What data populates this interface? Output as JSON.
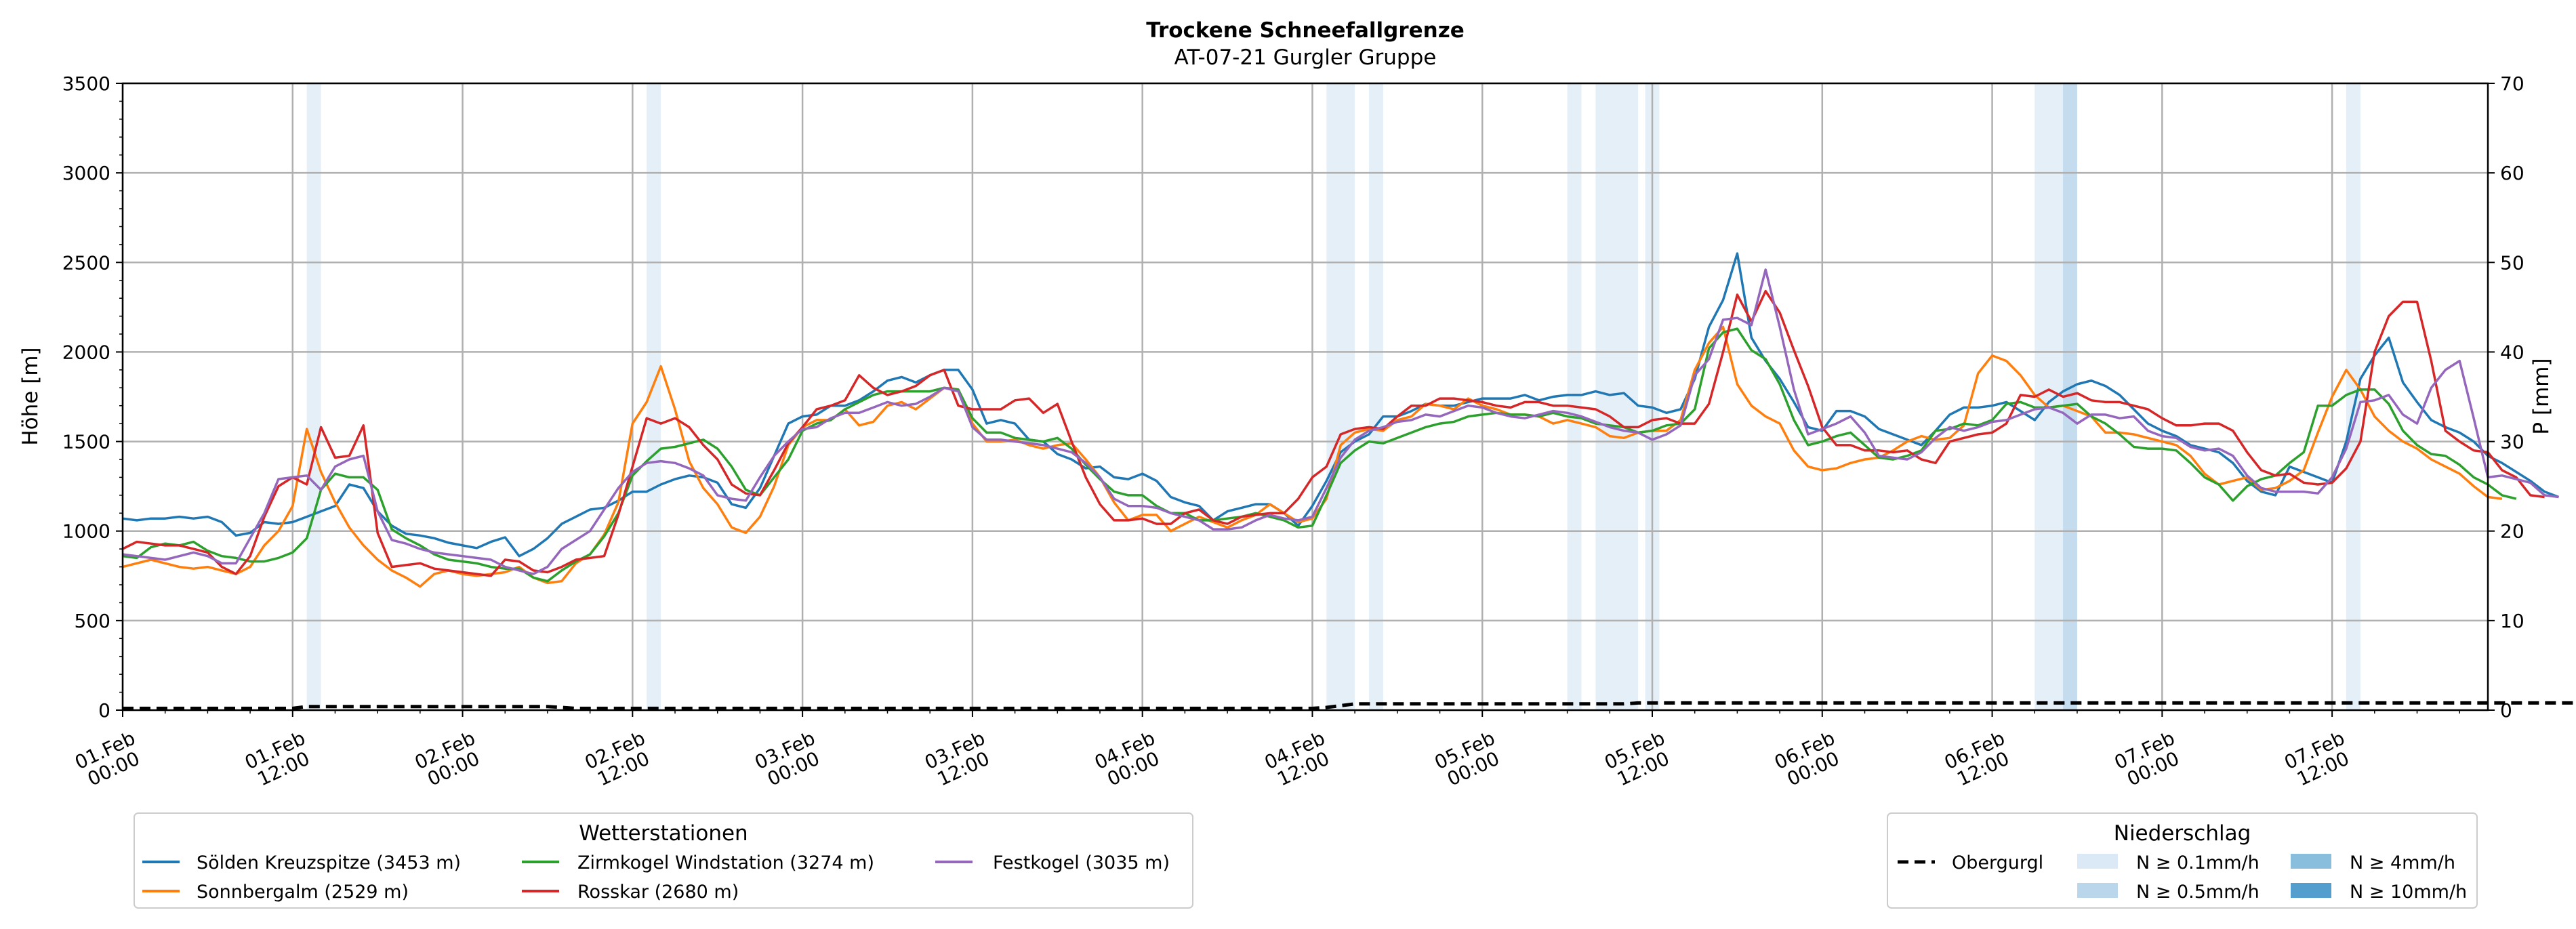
{
  "chart_data": {
    "type": "line",
    "title": "Trockene Schneefallgrenze",
    "subtitle": "AT-07-21 Gurgler Gruppe",
    "ylabel": "Höhe [m]",
    "y2label": "P [mm]",
    "ylim": [
      0,
      3500
    ],
    "y2lim": [
      0,
      70
    ],
    "yticks": [
      "0",
      "500",
      "1000",
      "1500",
      "2000",
      "2500",
      "3000",
      "3500"
    ],
    "y2ticks": [
      "0",
      "10",
      "20",
      "30",
      "40",
      "50",
      "60",
      "70"
    ],
    "xlim_hours": [
      0,
      167
    ],
    "step_hours": 1,
    "xticks": [
      {
        "h": 0,
        "l1": "01.Feb",
        "l2": "00:00"
      },
      {
        "h": 12,
        "l1": "01.Feb",
        "l2": "12:00"
      },
      {
        "h": 24,
        "l1": "02.Feb",
        "l2": "00:00"
      },
      {
        "h": 36,
        "l1": "02.Feb",
        "l2": "12:00"
      },
      {
        "h": 48,
        "l1": "03.Feb",
        "l2": "00:00"
      },
      {
        "h": 60,
        "l1": "03.Feb",
        "l2": "12:00"
      },
      {
        "h": 72,
        "l1": "04.Feb",
        "l2": "00:00"
      },
      {
        "h": 84,
        "l1": "04.Feb",
        "l2": "12:00"
      },
      {
        "h": 96,
        "l1": "05.Feb",
        "l2": "00:00"
      },
      {
        "h": 108,
        "l1": "05.Feb",
        "l2": "12:00"
      },
      {
        "h": 120,
        "l1": "06.Feb",
        "l2": "00:00"
      },
      {
        "h": 132,
        "l1": "06.Feb",
        "l2": "12:00"
      },
      {
        "h": 144,
        "l1": "07.Feb",
        "l2": "00:00"
      },
      {
        "h": 156,
        "l1": "07.Feb",
        "l2": "12:00"
      }
    ],
    "precip_bands": [
      {
        "start": 13,
        "end": 14,
        "level": 0.1
      },
      {
        "start": 37,
        "end": 38,
        "level": 0.1
      },
      {
        "start": 85,
        "end": 87,
        "level": 0.1
      },
      {
        "start": 88,
        "end": 89,
        "level": 0.1
      },
      {
        "start": 102,
        "end": 103,
        "level": 0.1
      },
      {
        "start": 104,
        "end": 107,
        "level": 0.1
      },
      {
        "start": 107.5,
        "end": 108.5,
        "level": 0.1
      },
      {
        "start": 135,
        "end": 138,
        "level": 0.1
      },
      {
        "start": 137,
        "end": 138,
        "level": 0.5
      },
      {
        "start": 157,
        "end": 158,
        "level": 0.1
      }
    ],
    "obergurgl_precip_mm": [
      0.2,
      0.2,
      0.2,
      0.2,
      0.2,
      0.2,
      0.2,
      0.2,
      0.2,
      0.2,
      0.2,
      0.2,
      0.2,
      0.4,
      0.4,
      0.4,
      0.4,
      0.4,
      0.4,
      0.4,
      0.4,
      0.4,
      0.4,
      0.4,
      0.4,
      0.4,
      0.4,
      0.4,
      0.4,
      0.4,
      0.4,
      0.3,
      0.2,
      0.2,
      0.2,
      0.2,
      0.2,
      0.2,
      0.2,
      0.2,
      0.2,
      0.2,
      0.2,
      0.2,
      0.2,
      0.2,
      0.2,
      0.2,
      0.2,
      0.2,
      0.2,
      0.2,
      0.2,
      0.2,
      0.2,
      0.2,
      0.2,
      0.2,
      0.2,
      0.2,
      0.2,
      0.2,
      0.2,
      0.2,
      0.2,
      0.2,
      0.2,
      0.2,
      0.2,
      0.2,
      0.2,
      0.2,
      0.2,
      0.2,
      0.2,
      0.2,
      0.2,
      0.2,
      0.2,
      0.2,
      0.2,
      0.2,
      0.2,
      0.2,
      0.2,
      0.3,
      0.5,
      0.7,
      0.7,
      0.7,
      0.7,
      0.7,
      0.7,
      0.7,
      0.7,
      0.7,
      0.7,
      0.7,
      0.7,
      0.7,
      0.7,
      0.7,
      0.7,
      0.7,
      0.7,
      0.7,
      0.7,
      0.8,
      0.8,
      0.8,
      0.8,
      0.8,
      0.8,
      0.8,
      0.8,
      0.8,
      0.8,
      0.8,
      0.8,
      0.8,
      0.8,
      0.8,
      0.8,
      0.8,
      0.8,
      0.8,
      0.8,
      0.8,
      0.8,
      0.8,
      0.8,
      0.8,
      0.8,
      0.8,
      0.8,
      0.8,
      0.8,
      0.8,
      0.8,
      0.8,
      0.8,
      0.8,
      0.8,
      0.8,
      0.8,
      0.8,
      0.8,
      0.8,
      0.8,
      0.8,
      0.8,
      0.8,
      0.8,
      0.8,
      0.8,
      0.8,
      0.8,
      0.8,
      0.8,
      0.8,
      0.8,
      0.8,
      0.8,
      0.8,
      0.8,
      0.8,
      0.8,
      0.8,
      0.8,
      0.8,
      0.8,
      0.8,
      0.8,
      0.8
    ],
    "series": [
      {
        "name": "Sölden Kreuzspitze (3453 m)",
        "color": "#1f77b4",
        "values": [
          1070,
          1060,
          1070,
          1070,
          1080,
          1070,
          1080,
          1050,
          975,
          990,
          1050,
          1040,
          1050,
          1080,
          1110,
          1140,
          1260,
          1240,
          1110,
          1030,
          985,
          975,
          960,
          935,
          920,
          905,
          940,
          965,
          860,
          900,
          960,
          1040,
          1080,
          1120,
          1130,
          1170,
          1220,
          1220,
          1260,
          1290,
          1310,
          1300,
          1270,
          1150,
          1130,
          1240,
          1420,
          1600,
          1640,
          1650,
          1700,
          1700,
          1730,
          1780,
          1840,
          1860,
          1830,
          1870,
          1900,
          1900,
          1790,
          1600,
          1620,
          1600,
          1510,
          1500,
          1430,
          1400,
          1350,
          1360,
          1300,
          1290,
          1320,
          1280,
          1190,
          1160,
          1140,
          1060,
          1110,
          1130,
          1150,
          1150,
          1100,
          1030,
          1140,
          1280,
          1440,
          1500,
          1540,
          1640,
          1640,
          1670,
          1710,
          1700,
          1700,
          1720,
          1740,
          1740,
          1740,
          1760,
          1730,
          1750,
          1760,
          1760,
          1780,
          1760,
          1770,
          1700,
          1690,
          1660,
          1680,
          1850,
          2140,
          2290,
          2550,
          2080,
          1950,
          1850,
          1720,
          1580,
          1560,
          1670,
          1670,
          1640,
          1570,
          1540,
          1510,
          1480,
          1560,
          1650,
          1690,
          1690,
          1700,
          1720,
          1670,
          1620,
          1720,
          1780,
          1820,
          1840,
          1810,
          1760,
          1680,
          1600,
          1560,
          1530,
          1480,
          1460,
          1440,
          1380,
          1280,
          1220,
          1200,
          1360,
          1330,
          1300,
          1270,
          1500,
          1850,
          1980,
          2080,
          1830,
          1720,
          1620,
          1580,
          1550,
          1500,
          1420,
          1380,
          1330,
          1280,
          1220,
          1190
        ]
      },
      {
        "name": "Sonnbergalm (2529 m)",
        "color": "#ff7f0e",
        "values": [
          800,
          820,
          840,
          820,
          800,
          790,
          800,
          780,
          760,
          800,
          920,
          1000,
          1140,
          1570,
          1330,
          1160,
          1020,
          920,
          840,
          780,
          740,
          690,
          760,
          780,
          760,
          750,
          760,
          770,
          800,
          740,
          710,
          720,
          820,
          870,
          980,
          1160,
          1600,
          1720,
          1920,
          1680,
          1390,
          1240,
          1150,
          1020,
          990,
          1080,
          1250,
          1480,
          1580,
          1620,
          1620,
          1680,
          1590,
          1610,
          1700,
          1720,
          1680,
          1740,
          1800,
          1790,
          1600,
          1500,
          1500,
          1510,
          1480,
          1460,
          1480,
          1490,
          1400,
          1300,
          1160,
          1060,
          1090,
          1090,
          1000,
          1040,
          1080,
          1050,
          1020,
          1060,
          1090,
          1150,
          1100,
          1050,
          1070,
          1180,
          1480,
          1550,
          1570,
          1560,
          1620,
          1640,
          1710,
          1700,
          1680,
          1740,
          1700,
          1680,
          1650,
          1650,
          1640,
          1600,
          1620,
          1600,
          1580,
          1530,
          1520,
          1550,
          1560,
          1560,
          1620,
          1900,
          2050,
          2140,
          1820,
          1700,
          1640,
          1600,
          1450,
          1360,
          1340,
          1350,
          1380,
          1400,
          1410,
          1450,
          1500,
          1530,
          1510,
          1520,
          1590,
          1880,
          1980,
          1950,
          1870,
          1760,
          1690,
          1700,
          1670,
          1640,
          1550,
          1550,
          1540,
          1520,
          1500,
          1480,
          1420,
          1320,
          1260,
          1280,
          1300,
          1230,
          1240,
          1280,
          1340,
          1550,
          1750,
          1900,
          1790,
          1640,
          1560,
          1500,
          1460,
          1400,
          1360,
          1320,
          1250,
          1190,
          1180
        ]
      },
      {
        "name": "Zirmkogel Windstation (3274 m)",
        "color": "#2ca02c",
        "values": [
          860,
          850,
          910,
          930,
          920,
          940,
          890,
          860,
          850,
          830,
          830,
          850,
          880,
          960,
          1230,
          1320,
          1300,
          1300,
          1230,
          1010,
          960,
          920,
          870,
          840,
          830,
          820,
          800,
          790,
          790,
          740,
          720,
          780,
          830,
          870,
          970,
          1100,
          1310,
          1390,
          1460,
          1470,
          1490,
          1510,
          1460,
          1360,
          1230,
          1200,
          1300,
          1400,
          1560,
          1600,
          1620,
          1680,
          1720,
          1760,
          1780,
          1780,
          1780,
          1780,
          1800,
          1790,
          1630,
          1550,
          1550,
          1520,
          1510,
          1500,
          1520,
          1460,
          1370,
          1290,
          1220,
          1200,
          1200,
          1140,
          1100,
          1100,
          1060,
          1060,
          1070,
          1080,
          1100,
          1080,
          1060,
          1020,
          1030,
          1200,
          1380,
          1450,
          1500,
          1490,
          1520,
          1550,
          1580,
          1600,
          1610,
          1640,
          1650,
          1660,
          1650,
          1650,
          1640,
          1660,
          1640,
          1630,
          1600,
          1590,
          1580,
          1550,
          1560,
          1590,
          1600,
          1680,
          2020,
          2110,
          2130,
          2010,
          1960,
          1820,
          1620,
          1480,
          1500,
          1530,
          1550,
          1480,
          1410,
          1400,
          1420,
          1450,
          1560,
          1570,
          1600,
          1590,
          1620,
          1710,
          1720,
          1690,
          1690,
          1700,
          1710,
          1640,
          1600,
          1540,
          1470,
          1460,
          1460,
          1450,
          1380,
          1300,
          1260,
          1170,
          1250,
          1290,
          1310,
          1380,
          1440,
          1700,
          1700,
          1760,
          1790,
          1790,
          1710,
          1560,
          1480,
          1430,
          1420,
          1370,
          1300,
          1260,
          1200,
          1180
        ]
      },
      {
        "name": "Rosskar (2680 m)",
        "color": "#d62728",
        "values": [
          900,
          940,
          930,
          920,
          920,
          900,
          880,
          800,
          760,
          860,
          1080,
          1250,
          1300,
          1260,
          1580,
          1410,
          1420,
          1590,
          990,
          800,
          810,
          820,
          790,
          780,
          770,
          760,
          750,
          840,
          830,
          780,
          770,
          800,
          840,
          850,
          860,
          1090,
          1360,
          1630,
          1600,
          1630,
          1580,
          1480,
          1400,
          1260,
          1210,
          1200,
          1340,
          1490,
          1580,
          1680,
          1700,
          1730,
          1870,
          1800,
          1760,
          1780,
          1810,
          1870,
          1900,
          1700,
          1680,
          1680,
          1680,
          1730,
          1740,
          1660,
          1710,
          1500,
          1300,
          1150,
          1060,
          1060,
          1070,
          1040,
          1040,
          1100,
          1120,
          1060,
          1040,
          1080,
          1090,
          1100,
          1100,
          1180,
          1300,
          1360,
          1540,
          1570,
          1580,
          1570,
          1640,
          1700,
          1700,
          1740,
          1740,
          1730,
          1720,
          1700,
          1690,
          1720,
          1720,
          1700,
          1700,
          1690,
          1680,
          1640,
          1580,
          1580,
          1620,
          1630,
          1600,
          1600,
          1710,
          2000,
          2320,
          2170,
          2340,
          2220,
          2010,
          1810,
          1580,
          1480,
          1480,
          1450,
          1450,
          1440,
          1450,
          1400,
          1380,
          1500,
          1520,
          1540,
          1550,
          1600,
          1760,
          1750,
          1790,
          1750,
          1770,
          1730,
          1720,
          1720,
          1700,
          1680,
          1630,
          1590,
          1590,
          1600,
          1600,
          1560,
          1440,
          1340,
          1310,
          1320,
          1270,
          1260,
          1270,
          1350,
          1500,
          2000,
          2200,
          2280,
          2280,
          1950,
          1560,
          1500,
          1450,
          1440,
          1340,
          1300,
          1200,
          1190
        ]
      },
      {
        "name": "Festkogel (3035 m)",
        "color": "#9467bd",
        "values": [
          870,
          860,
          850,
          840,
          860,
          880,
          860,
          820,
          820,
          960,
          1100,
          1290,
          1300,
          1310,
          1230,
          1360,
          1400,
          1420,
          1110,
          950,
          930,
          900,
          880,
          870,
          860,
          850,
          840,
          800,
          780,
          760,
          800,
          900,
          950,
          1000,
          1120,
          1240,
          1330,
          1380,
          1390,
          1380,
          1350,
          1310,
          1200,
          1180,
          1170,
          1300,
          1420,
          1500,
          1570,
          1580,
          1630,
          1660,
          1660,
          1690,
          1720,
          1700,
          1710,
          1750,
          1800,
          1780,
          1580,
          1510,
          1510,
          1500,
          1490,
          1480,
          1460,
          1440,
          1380,
          1300,
          1180,
          1140,
          1140,
          1130,
          1100,
          1080,
          1060,
          1010,
          1010,
          1020,
          1060,
          1090,
          1070,
          1060,
          1080,
          1240,
          1410,
          1510,
          1560,
          1580,
          1610,
          1620,
          1650,
          1640,
          1670,
          1700,
          1690,
          1660,
          1640,
          1630,
          1650,
          1670,
          1660,
          1640,
          1610,
          1580,
          1560,
          1550,
          1510,
          1540,
          1590,
          1870,
          1960,
          2180,
          2190,
          2150,
          2460,
          2140,
          1790,
          1540,
          1570,
          1600,
          1640,
          1550,
          1420,
          1410,
          1400,
          1440,
          1520,
          1580,
          1560,
          1580,
          1610,
          1620,
          1650,
          1680,
          1690,
          1660,
          1600,
          1650,
          1650,
          1630,
          1640,
          1560,
          1530,
          1520,
          1470,
          1450,
          1460,
          1420,
          1310,
          1240,
          1220,
          1220,
          1220,
          1210,
          1300,
          1460,
          1720,
          1730,
          1760,
          1650,
          1600,
          1800,
          1900,
          1950,
          1630,
          1300,
          1310,
          1290,
          1270,
          1200,
          1190
        ]
      }
    ],
    "legend_stations": {
      "title": "Wetterstationen",
      "items": [
        "Sölden Kreuzspitze (3453 m)",
        "Sonnbergalm (2529 m)",
        "Zirmkogel Windstation (3274 m)",
        "Rosskar (2680 m)",
        "Festkogel (3035 m)"
      ],
      "placement": "lower-left"
    },
    "legend_precip": {
      "title": "Niederschlag",
      "line_label": "Obergurgl",
      "line_color": "#000000",
      "bins": [
        {
          "label": "N ≥ 0.1mm/h",
          "color": "#dbe9f6"
        },
        {
          "label": "N ≥ 0.5mm/h",
          "color": "#bad6eb"
        },
        {
          "label": "N ≥ 4mm/h",
          "color": "#89bedc"
        },
        {
          "label": "N ≥ 10mm/h",
          "color": "#539ecd"
        }
      ],
      "placement": "lower-right"
    }
  }
}
